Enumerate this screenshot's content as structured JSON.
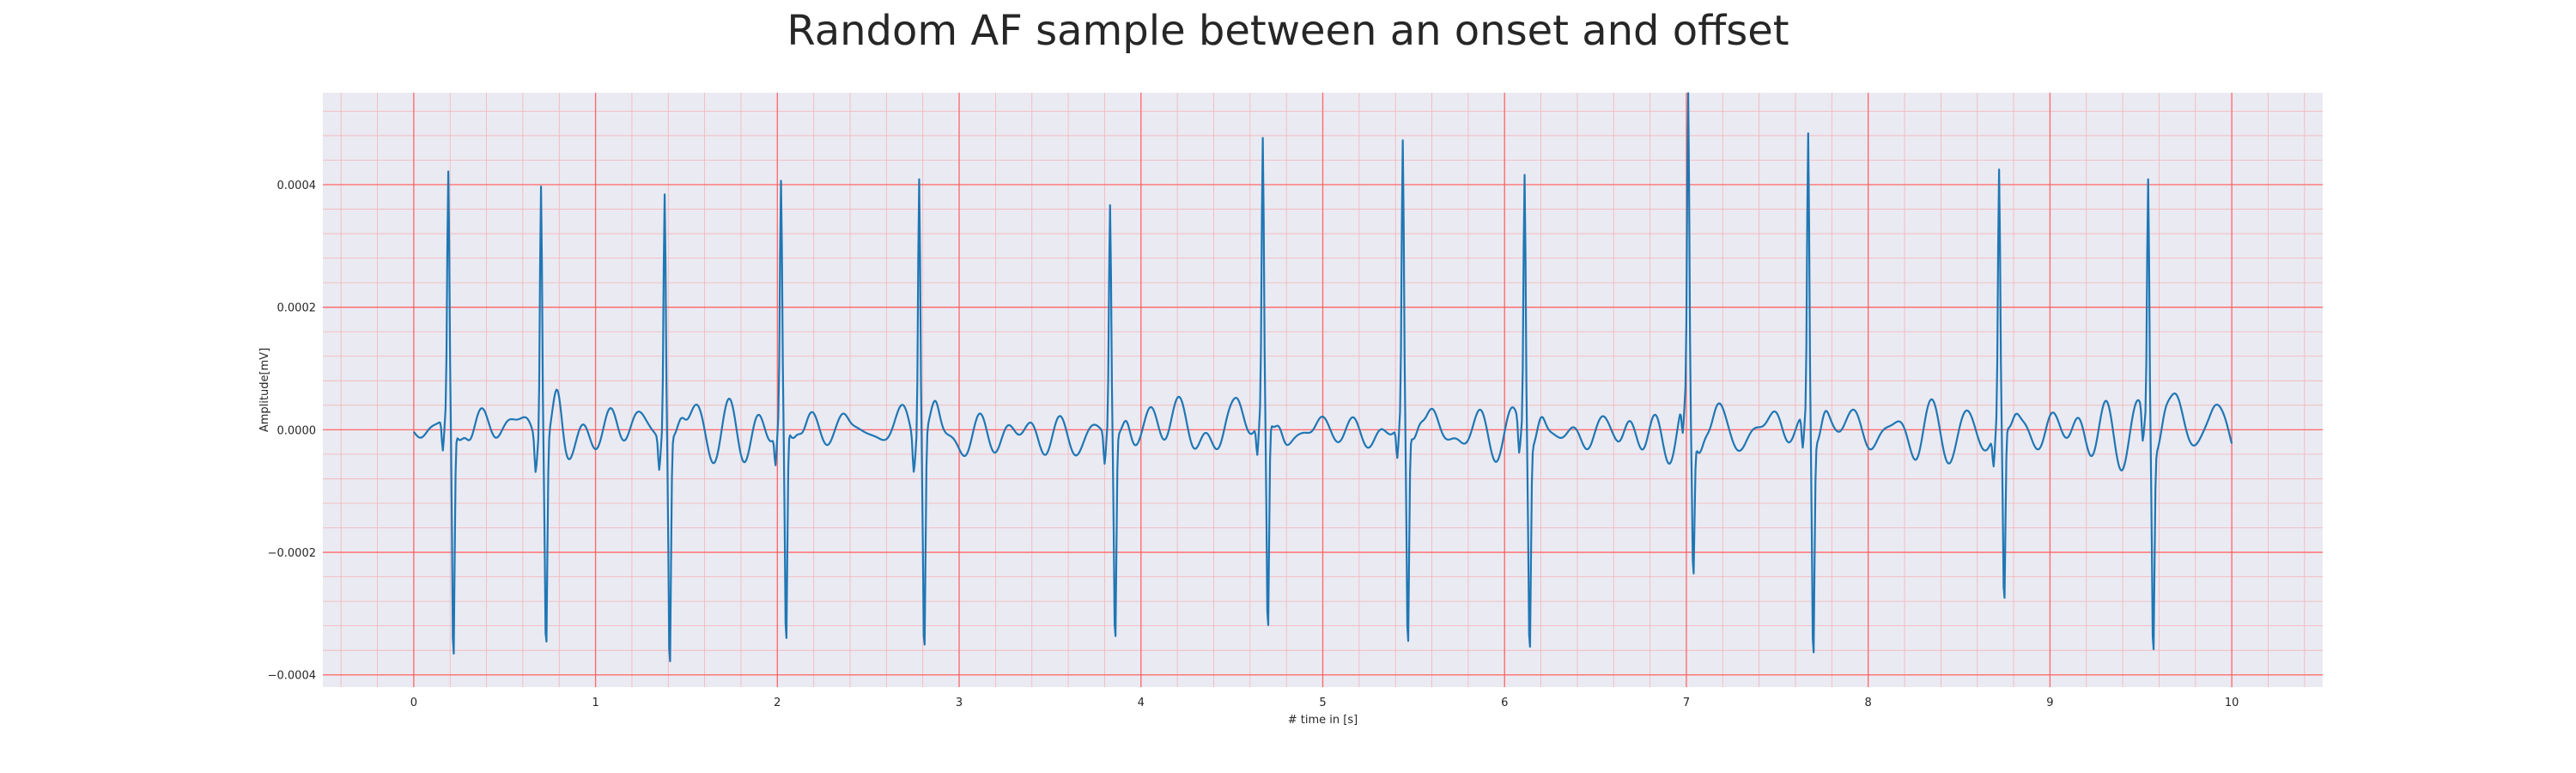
{
  "chart_data": {
    "type": "line",
    "title": "Random AF sample between an onset and offset",
    "xlabel": "# time in [s]",
    "ylabel": "Amplitude[mV]",
    "xlim": [
      -0.5,
      10.5
    ],
    "ylim": [
      -0.00042,
      0.00055
    ],
    "xticks": [
      0,
      1,
      2,
      3,
      4,
      5,
      6,
      7,
      8,
      9,
      10
    ],
    "xtick_labels": [
      "0",
      "1",
      "2",
      "3",
      "4",
      "5",
      "6",
      "7",
      "8",
      "9",
      "10"
    ],
    "yticks": [
      -0.0004,
      -0.0002,
      0.0,
      0.0002,
      0.0004
    ],
    "ytick_labels": [
      "−0.0004",
      "−0.0002",
      "0.0000",
      "0.0002",
      "0.0004"
    ],
    "grid": true,
    "series": [
      {
        "color": "#1f77b4",
        "beats": [
          {
            "t": 0.19,
            "peak": 0.000405,
            "trough": -0.000385
          },
          {
            "t": 0.7,
            "peak": 0.000438,
            "trough": -0.000335
          },
          {
            "t": 1.38,
            "peak": 0.000403,
            "trough": -0.000382
          },
          {
            "t": 2.02,
            "peak": 0.000393,
            "trough": -0.000365
          },
          {
            "t": 2.78,
            "peak": 0.000442,
            "trough": -0.000355
          },
          {
            "t": 3.83,
            "peak": 0.000378,
            "trough": -0.000342
          },
          {
            "t": 4.67,
            "peak": 0.000453,
            "trough": -0.000352
          },
          {
            "t": 5.44,
            "peak": 0.00046,
            "trough": -0.00036
          },
          {
            "t": 6.11,
            "peak": 0.000435,
            "trough": -0.000338
          },
          {
            "t": 7.01,
            "peak": 0.00051,
            "trough": -0.000238
          },
          {
            "t": 7.67,
            "peak": 0.00048,
            "trough": -0.00036
          },
          {
            "t": 8.72,
            "peak": 0.000417,
            "trough": -0.000295
          },
          {
            "t": 9.54,
            "peak": 0.00042,
            "trough": -0.000335
          }
        ],
        "t_start": 0.0,
        "t_end": 10.0
      }
    ]
  },
  "colors": {
    "background": "#eaeaf2",
    "major_grid": "#ff6666",
    "minor_grid": "#f4b3b8",
    "line": "#1f77b4",
    "text": "#262626"
  }
}
